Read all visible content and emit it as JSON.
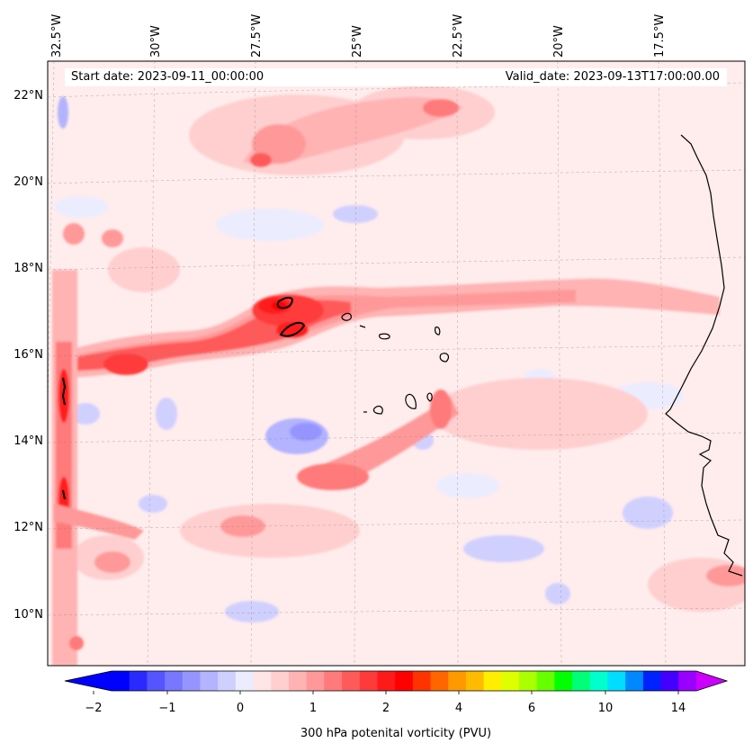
{
  "header": {
    "start_date": "Start date: 2023-09-11_00:00:00",
    "valid_date": "Valid_date: 2023-09-13T17:00:00.00"
  },
  "axes": {
    "lon_labels": [
      "32.5°W",
      "30°W",
      "27.5°W",
      "25°W",
      "22.5°W",
      "20°W",
      "17.5°W"
    ],
    "lat_labels": [
      "22°N",
      "20°N",
      "18°N",
      "16°N",
      "14°N",
      "12°N",
      "10°N"
    ]
  },
  "colorbar": {
    "ticks": [
      "−2",
      "−1",
      "0",
      "1",
      "2",
      "4",
      "6",
      "10",
      "14"
    ],
    "label": "300 hPa potenital vorticity (PVU)",
    "colors": [
      "#0000ff",
      "#2a2aff",
      "#5555ff",
      "#7777ff",
      "#9595ff",
      "#b3b3ff",
      "#d0d0ff",
      "#ececff",
      "#ffe5e5",
      "#ffcfcf",
      "#ffb3b3",
      "#ff9999",
      "#ff7a7a",
      "#ff5a5a",
      "#ff3a3a",
      "#ff1a1a",
      "#ff0000",
      "#ff3300",
      "#ff6600",
      "#ff9900",
      "#ffbb00",
      "#ffee00",
      "#ddff00",
      "#aaff00",
      "#66ff00",
      "#00ff00",
      "#00ff77",
      "#00ffcc",
      "#00ddff",
      "#0088ff",
      "#0022ff",
      "#4400ff",
      "#9900ff"
    ],
    "extend_left": "#0000ff",
    "extend_right": "#cc00ff"
  },
  "chart_data": {
    "type": "heatmap",
    "title": "",
    "variable": "300 hPa potenital vorticity (PVU)",
    "lon_range": [
      -32.8,
      -16.0
    ],
    "lat_range": [
      8.9,
      22.8
    ],
    "colorbar_range": [
      -2,
      15
    ],
    "features": [
      {
        "name": "PV streamer along 16-17N",
        "lon": [
          -32.5,
          -27.5,
          -25.0,
          -20.0,
          -17.0
        ],
        "lat": [
          15.9,
          16.4,
          17.2,
          17.1,
          16.6
        ],
        "max_pv": 2.5
      },
      {
        "name": "PV maximum",
        "lon": -27.0,
        "lat": 16.9,
        "value": 2.5
      },
      {
        "name": "Western edge band",
        "lon": -32.3,
        "lat_range": [
          9.0,
          16.0
        ],
        "max_pv": 2.5
      },
      {
        "name": "Northern band",
        "lon": [
          -27.0,
          -22.0
        ],
        "lat": [
          20.5,
          22.0
        ],
        "max_pv": 1.5
      },
      {
        "name": "Negative PV patches",
        "value": -0.5
      }
    ]
  }
}
